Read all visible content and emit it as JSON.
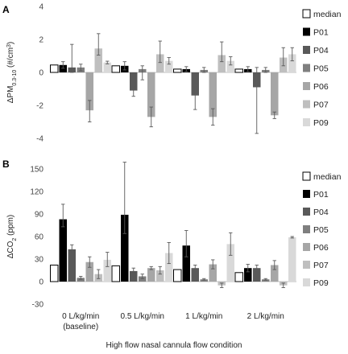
{
  "figure": {
    "xlabel": "High flow nasal cannula flow condition",
    "categories": [
      [
        "0 L/kg/min",
        "(baseline)"
      ],
      [
        "0.5 L/kg/min"
      ],
      [
        "1 L/kg/min"
      ],
      [
        "2 L/kg/min"
      ]
    ]
  },
  "colors": {
    "median": "#ffffff",
    "P01": "#000000",
    "P04": "#595959",
    "P05": "#7f7f7f",
    "P06": "#a6a6a6",
    "P07": "#bfbfbf",
    "P09": "#d9d9d9"
  },
  "chart_data": [
    {
      "panel": "A",
      "type": "bar",
      "ylabel_main": "ΔPM",
      "ylabel_sub": "0.3-10",
      "ylabel_unit": " (#/cm",
      "ylabel_sup": "3",
      "ylabel_end": ")",
      "ylim": [
        -4,
        4
      ],
      "yticks": [
        -4,
        -2,
        0,
        2,
        4
      ],
      "yticklabels": [
        "-4",
        "-2",
        "0",
        "2",
        "4"
      ],
      "grid": false,
      "legend": "right",
      "categories": [
        "0 L/kg/min (baseline)",
        "0.5 L/kg/min",
        "1 L/kg/min",
        "2 L/kg/min"
      ],
      "series": [
        {
          "name": "median",
          "values": [
            0.45,
            0.4,
            0.2,
            0.2
          ],
          "err_low": [
            0,
            0,
            0,
            0
          ],
          "err_high": [
            0,
            0,
            0,
            0
          ]
        },
        {
          "name": "P01",
          "values": [
            0.45,
            0.4,
            0.2,
            0.2
          ],
          "err_low": [
            0.2,
            0.25,
            0.15,
            0.15
          ],
          "err_high": [
            0.2,
            0.25,
            0.15,
            0.15
          ]
        },
        {
          "name": "P04",
          "values": [
            0.3,
            -1.1,
            -1.4,
            -0.9
          ],
          "err_low": [
            0.3,
            0.35,
            0.85,
            2.8
          ],
          "err_high": [
            1.4,
            0.35,
            0.6,
            1.2
          ]
        },
        {
          "name": "P05",
          "values": [
            0.3,
            0.2,
            0.15,
            0.15
          ],
          "err_low": [
            0.2,
            0.65,
            0.15,
            0.15
          ],
          "err_high": [
            0.2,
            0.2,
            0.15,
            0.15
          ]
        },
        {
          "name": "P06",
          "values": [
            -2.3,
            -2.7,
            -2.7,
            -2.6
          ],
          "err_low": [
            0.7,
            0.6,
            0.5,
            0.2
          ],
          "err_high": [
            0.6,
            0.6,
            0.5,
            0.2
          ]
        },
        {
          "name": "P07",
          "values": [
            1.45,
            1.1,
            1.05,
            0.9
          ],
          "err_low": [
            0.4,
            0.5,
            0.4,
            0.5
          ],
          "err_high": [
            0.9,
            0.8,
            0.8,
            0.6
          ]
        },
        {
          "name": "P09",
          "values": [
            0.6,
            0.7,
            0.7,
            1.1
          ],
          "err_low": [
            0.08,
            0.2,
            0.25,
            0.4
          ],
          "err_high": [
            0.08,
            0.2,
            0.25,
            0.4
          ]
        }
      ]
    },
    {
      "panel": "B",
      "type": "bar",
      "ylabel_main": "ΔCO",
      "ylabel_sub": "2",
      "ylabel_unit": " (ppm)",
      "ylabel_sup": "",
      "ylabel_end": "",
      "ylim": [
        -30,
        150
      ],
      "yticks": [
        -30,
        0,
        30,
        60,
        90,
        120,
        150
      ],
      "yticklabels": [
        "-30",
        "0",
        "30",
        "60",
        "90",
        "120",
        "150"
      ],
      "grid": false,
      "legend": "right",
      "categories": [
        "0 L/kg/min (baseline)",
        "0.5 L/kg/min",
        "1 L/kg/min",
        "2 L/kg/min"
      ],
      "series": [
        {
          "name": "median",
          "values": [
            22,
            21,
            16,
            12
          ],
          "err_low": [
            0,
            0,
            0,
            0
          ],
          "err_high": [
            0,
            0,
            0,
            0
          ]
        },
        {
          "name": "P01",
          "values": [
            83,
            89,
            48,
            18
          ],
          "err_low": [
            10,
            25,
            15,
            5
          ],
          "err_high": [
            20,
            70,
            20,
            5
          ]
        },
        {
          "name": "P04",
          "values": [
            43,
            14,
            18,
            18
          ],
          "err_low": [
            6,
            4,
            4,
            4
          ],
          "err_high": [
            6,
            4,
            4,
            4
          ]
        },
        {
          "name": "P05",
          "values": [
            5,
            7,
            3,
            3
          ],
          "err_low": [
            2,
            3,
            1,
            1
          ],
          "err_high": [
            2,
            3,
            1,
            1
          ]
        },
        {
          "name": "P06",
          "values": [
            26,
            18,
            23,
            22
          ],
          "err_low": [
            7,
            2,
            6,
            6
          ],
          "err_high": [
            7,
            2,
            6,
            6
          ]
        },
        {
          "name": "P07",
          "values": [
            10,
            15,
            -5,
            -5
          ],
          "err_low": [
            6,
            5,
            3,
            3
          ],
          "err_high": [
            6,
            5,
            3,
            3
          ]
        },
        {
          "name": "P09",
          "values": [
            29,
            38,
            50,
            59
          ],
          "err_low": [
            9,
            14,
            15,
            1
          ],
          "err_high": [
            10,
            14,
            15,
            1
          ]
        }
      ]
    }
  ]
}
